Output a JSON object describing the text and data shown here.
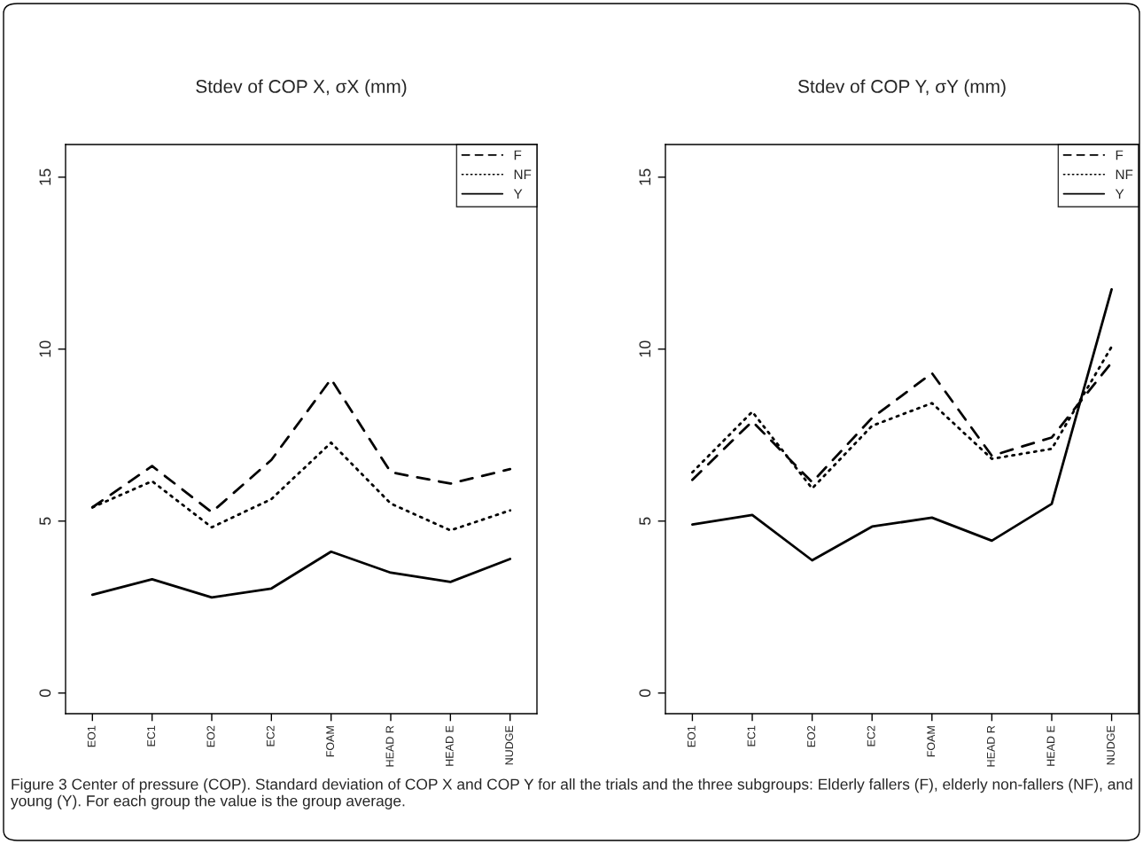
{
  "chart_data": [
    {
      "type": "line",
      "title": "Stdev of COP X, σX (mm)",
      "categories": [
        "EO1",
        "EC1",
        "EO2",
        "EC2",
        "FOAM",
        "HEAD R",
        "HEAD E",
        "NUDGE"
      ],
      "ylim": [
        -0.6,
        15.95
      ],
      "yticks": [
        0,
        5,
        10,
        15
      ],
      "grid": false,
      "legend": "top right",
      "marker": "none",
      "series": [
        {
          "name": "F",
          "color": "#000000",
          "line_style": "dashed",
          "values": [
            5.4,
            6.6,
            5.26,
            6.78,
            9.13,
            6.42,
            6.09,
            6.51
          ]
        },
        {
          "name": "NF",
          "color": "#000000",
          "line_style": "dotted",
          "values": [
            5.4,
            6.16,
            4.82,
            5.64,
            7.28,
            5.51,
            4.73,
            5.31
          ]
        },
        {
          "name": "Y",
          "color": "#000000",
          "line_style": "solid",
          "values": [
            2.86,
            3.31,
            2.78,
            3.04,
            4.11,
            3.5,
            3.23,
            3.9
          ]
        }
      ],
      "annotations": [
        "Figure 3 Center of pressure (COP). Standard deviation of COP X and COP Y for all the trials and the three subgroups: Elderly fallers (F), elderly non-fallers (NF), and young (Y). For each group the value is the group average."
      ]
    },
    {
      "type": "line",
      "title": "Stdev of COP Y, σY (mm)",
      "categories": [
        "EO1",
        "EC1",
        "EO2",
        "EC2",
        "FOAM",
        "HEAD R",
        "HEAD E",
        "NUDGE"
      ],
      "ylim": [
        -0.6,
        15.95
      ],
      "yticks": [
        0,
        5,
        10,
        15
      ],
      "grid": false,
      "legend": "top right",
      "marker": "none",
      "series": [
        {
          "name": "F",
          "color": "#000000",
          "line_style": "dashed",
          "values": [
            6.2,
            7.9,
            6.13,
            8.0,
            9.3,
            6.9,
            7.43,
            9.61
          ]
        },
        {
          "name": "NF",
          "color": "#000000",
          "line_style": "dotted",
          "values": [
            6.42,
            8.18,
            5.95,
            7.77,
            8.43,
            6.81,
            7.1,
            10.07
          ]
        },
        {
          "name": "Y",
          "color": "#000000",
          "line_style": "solid",
          "values": [
            4.9,
            5.18,
            3.86,
            4.84,
            5.1,
            4.43,
            5.5,
            11.74
          ]
        }
      ]
    }
  ]
}
